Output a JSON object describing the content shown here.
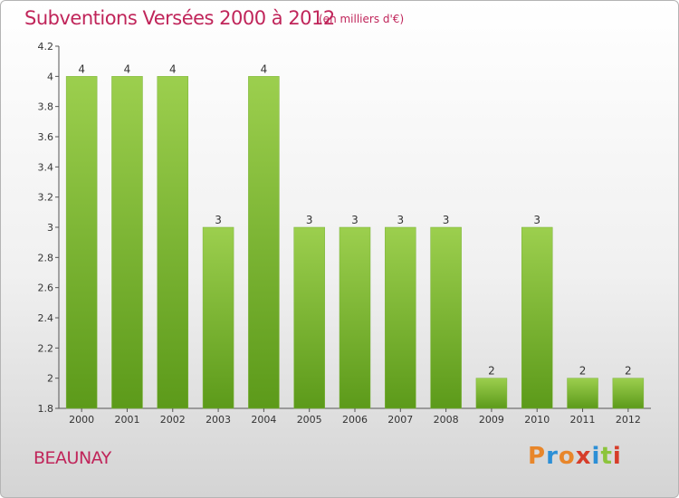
{
  "header": {
    "title": "Subventions Versées 2000 à 2012",
    "subtitle": "(en milliers d'€)"
  },
  "footer": {
    "commune": "BEAUNAY",
    "logo_text": "Proxiti",
    "logo_colors": [
      "#e8862a",
      "#2c8fd6",
      "#e8862a",
      "#d63d2a",
      "#2c8fd6",
      "#8cc43c",
      "#d63d2a"
    ]
  },
  "colors": {
    "title": "#c0255a",
    "bar_top": "#9ccf4e",
    "bar_bottom": "#5c9a1a",
    "axis": "#555555"
  },
  "chart_data": {
    "type": "bar",
    "title": "Subventions Versées 2000 à 2012",
    "subtitle": "(en milliers d'€)",
    "categories": [
      "2000",
      "2001",
      "2002",
      "2003",
      "2004",
      "2005",
      "2006",
      "2007",
      "2008",
      "2009",
      "2010",
      "2011",
      "2012"
    ],
    "values": [
      4,
      4,
      4,
      3,
      4,
      3,
      3,
      3,
      3,
      2,
      3,
      2,
      2
    ],
    "data_labels": [
      "4",
      "4",
      "4",
      "3",
      "4",
      "3",
      "3",
      "3",
      "3",
      "2",
      "3",
      "2",
      "2"
    ],
    "ylim": [
      1.8,
      4.2
    ],
    "yticks": [
      1.8,
      2,
      2.2,
      2.4,
      2.6,
      2.8,
      3,
      3.2,
      3.4,
      3.6,
      3.8,
      4,
      4.2
    ],
    "ytick_labels": [
      "1.8",
      "2",
      "2.2",
      "2.4",
      "2.6",
      "2.8",
      "3",
      "3.2",
      "3.4",
      "3.6",
      "3.8",
      "4",
      "4.2"
    ],
    "grid": false,
    "legend": "none"
  }
}
